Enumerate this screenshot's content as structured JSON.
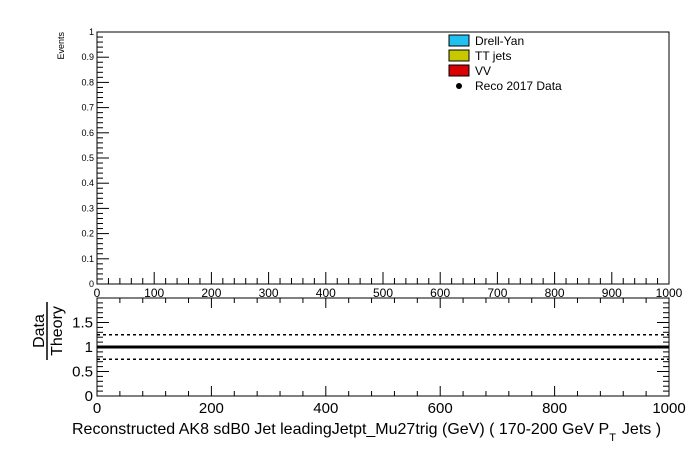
{
  "chart_data": [
    {
      "type": "bar",
      "ylabel": "Events",
      "xlim": [
        0,
        1000
      ],
      "ylim": [
        0,
        1
      ],
      "x_ticks": [
        "0",
        "100",
        "200",
        "300",
        "400",
        "500",
        "600",
        "700",
        "800",
        "900",
        "1000"
      ],
      "y_ticks": [
        "0",
        "0.1",
        "0.2",
        "0.3",
        "0.4",
        "0.5",
        "0.6",
        "0.7",
        "0.8",
        "0.9",
        "1"
      ],
      "legend": {
        "placement": "top-right",
        "entries": [
          {
            "name": "Drell-Yan",
            "kind": "box",
            "color": "#20c0f0"
          },
          {
            "name": "TT jets",
            "kind": "box",
            "color": "#c8c800"
          },
          {
            "name": "VV",
            "kind": "box",
            "color": "#d80000"
          },
          {
            "name": "Reco 2017 Data",
            "kind": "marker",
            "color": "#000000"
          }
        ]
      },
      "series": []
    },
    {
      "type": "line",
      "ylabel_top": "Data",
      "ylabel_bottom": "Theory",
      "xlabel_main": "Reconstructed AK8 sdB0 Jet leadingJetpt_Mu27trig (GeV) ( 170-200 GeV P",
      "xlabel_sub": "T",
      "xlabel_tail": "Jets  )",
      "xlim": [
        0,
        1000
      ],
      "ylim": [
        0,
        2
      ],
      "x_ticks": [
        "0",
        "200",
        "400",
        "600",
        "800",
        "1000"
      ],
      "y_ticks": [
        "0",
        "0.5",
        "1",
        "1.5"
      ],
      "reference_lines": [
        {
          "y": 1.0,
          "style": "solid"
        },
        {
          "y": 1.25,
          "style": "dashed"
        },
        {
          "y": 0.75,
          "style": "dashed"
        }
      ]
    }
  ]
}
